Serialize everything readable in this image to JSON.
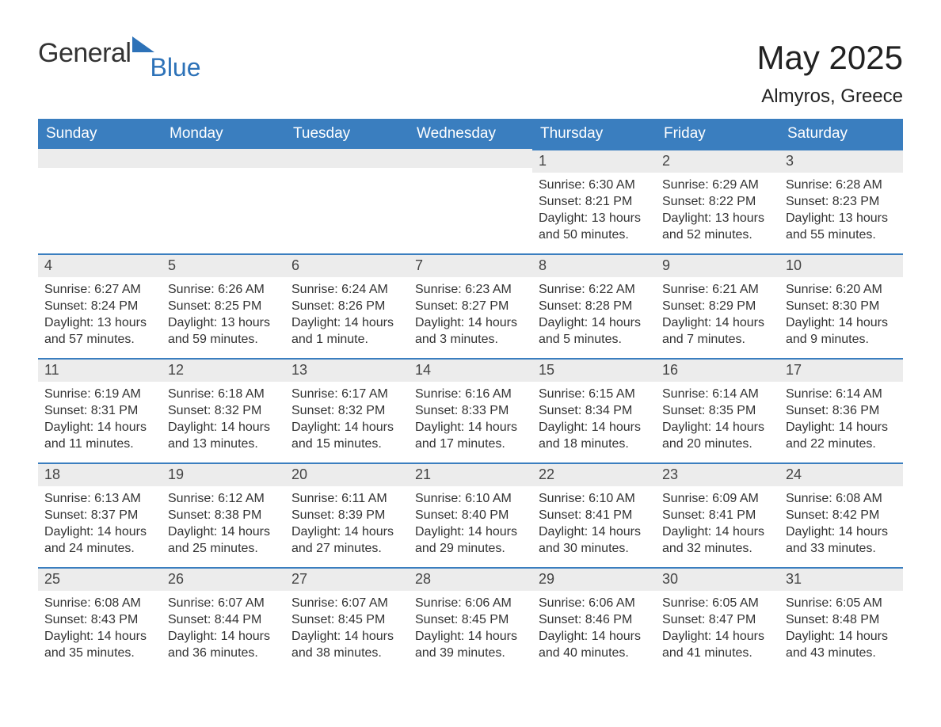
{
  "logo": {
    "general": "General",
    "blue": "Blue"
  },
  "title": "May 2025",
  "location": "Almyros, Greece",
  "colors": {
    "header_bg": "#3a7ebf",
    "header_text": "#ffffff",
    "daybar_bg": "#ececec",
    "daybar_border": "#3a7ebf",
    "body_text": "#333333",
    "logo_blue": "#2d72b8",
    "page_bg": "#ffffff"
  },
  "fonts": {
    "title_size_pt": 32,
    "location_size_pt": 18,
    "header_size_pt": 14,
    "daynum_size_pt": 13,
    "body_size_pt": 12
  },
  "weekdays": [
    "Sunday",
    "Monday",
    "Tuesday",
    "Wednesday",
    "Thursday",
    "Friday",
    "Saturday"
  ],
  "weeks": [
    [
      null,
      null,
      null,
      null,
      {
        "n": "1",
        "sr": "Sunrise: 6:30 AM",
        "ss": "Sunset: 8:21 PM",
        "d1": "Daylight: 13 hours",
        "d2": "and 50 minutes."
      },
      {
        "n": "2",
        "sr": "Sunrise: 6:29 AM",
        "ss": "Sunset: 8:22 PM",
        "d1": "Daylight: 13 hours",
        "d2": "and 52 minutes."
      },
      {
        "n": "3",
        "sr": "Sunrise: 6:28 AM",
        "ss": "Sunset: 8:23 PM",
        "d1": "Daylight: 13 hours",
        "d2": "and 55 minutes."
      }
    ],
    [
      {
        "n": "4",
        "sr": "Sunrise: 6:27 AM",
        "ss": "Sunset: 8:24 PM",
        "d1": "Daylight: 13 hours",
        "d2": "and 57 minutes."
      },
      {
        "n": "5",
        "sr": "Sunrise: 6:26 AM",
        "ss": "Sunset: 8:25 PM",
        "d1": "Daylight: 13 hours",
        "d2": "and 59 minutes."
      },
      {
        "n": "6",
        "sr": "Sunrise: 6:24 AM",
        "ss": "Sunset: 8:26 PM",
        "d1": "Daylight: 14 hours",
        "d2": "and 1 minute."
      },
      {
        "n": "7",
        "sr": "Sunrise: 6:23 AM",
        "ss": "Sunset: 8:27 PM",
        "d1": "Daylight: 14 hours",
        "d2": "and 3 minutes."
      },
      {
        "n": "8",
        "sr": "Sunrise: 6:22 AM",
        "ss": "Sunset: 8:28 PM",
        "d1": "Daylight: 14 hours",
        "d2": "and 5 minutes."
      },
      {
        "n": "9",
        "sr": "Sunrise: 6:21 AM",
        "ss": "Sunset: 8:29 PM",
        "d1": "Daylight: 14 hours",
        "d2": "and 7 minutes."
      },
      {
        "n": "10",
        "sr": "Sunrise: 6:20 AM",
        "ss": "Sunset: 8:30 PM",
        "d1": "Daylight: 14 hours",
        "d2": "and 9 minutes."
      }
    ],
    [
      {
        "n": "11",
        "sr": "Sunrise: 6:19 AM",
        "ss": "Sunset: 8:31 PM",
        "d1": "Daylight: 14 hours",
        "d2": "and 11 minutes."
      },
      {
        "n": "12",
        "sr": "Sunrise: 6:18 AM",
        "ss": "Sunset: 8:32 PM",
        "d1": "Daylight: 14 hours",
        "d2": "and 13 minutes."
      },
      {
        "n": "13",
        "sr": "Sunrise: 6:17 AM",
        "ss": "Sunset: 8:32 PM",
        "d1": "Daylight: 14 hours",
        "d2": "and 15 minutes."
      },
      {
        "n": "14",
        "sr": "Sunrise: 6:16 AM",
        "ss": "Sunset: 8:33 PM",
        "d1": "Daylight: 14 hours",
        "d2": "and 17 minutes."
      },
      {
        "n": "15",
        "sr": "Sunrise: 6:15 AM",
        "ss": "Sunset: 8:34 PM",
        "d1": "Daylight: 14 hours",
        "d2": "and 18 minutes."
      },
      {
        "n": "16",
        "sr": "Sunrise: 6:14 AM",
        "ss": "Sunset: 8:35 PM",
        "d1": "Daylight: 14 hours",
        "d2": "and 20 minutes."
      },
      {
        "n": "17",
        "sr": "Sunrise: 6:14 AM",
        "ss": "Sunset: 8:36 PM",
        "d1": "Daylight: 14 hours",
        "d2": "and 22 minutes."
      }
    ],
    [
      {
        "n": "18",
        "sr": "Sunrise: 6:13 AM",
        "ss": "Sunset: 8:37 PM",
        "d1": "Daylight: 14 hours",
        "d2": "and 24 minutes."
      },
      {
        "n": "19",
        "sr": "Sunrise: 6:12 AM",
        "ss": "Sunset: 8:38 PM",
        "d1": "Daylight: 14 hours",
        "d2": "and 25 minutes."
      },
      {
        "n": "20",
        "sr": "Sunrise: 6:11 AM",
        "ss": "Sunset: 8:39 PM",
        "d1": "Daylight: 14 hours",
        "d2": "and 27 minutes."
      },
      {
        "n": "21",
        "sr": "Sunrise: 6:10 AM",
        "ss": "Sunset: 8:40 PM",
        "d1": "Daylight: 14 hours",
        "d2": "and 29 minutes."
      },
      {
        "n": "22",
        "sr": "Sunrise: 6:10 AM",
        "ss": "Sunset: 8:41 PM",
        "d1": "Daylight: 14 hours",
        "d2": "and 30 minutes."
      },
      {
        "n": "23",
        "sr": "Sunrise: 6:09 AM",
        "ss": "Sunset: 8:41 PM",
        "d1": "Daylight: 14 hours",
        "d2": "and 32 minutes."
      },
      {
        "n": "24",
        "sr": "Sunrise: 6:08 AM",
        "ss": "Sunset: 8:42 PM",
        "d1": "Daylight: 14 hours",
        "d2": "and 33 minutes."
      }
    ],
    [
      {
        "n": "25",
        "sr": "Sunrise: 6:08 AM",
        "ss": "Sunset: 8:43 PM",
        "d1": "Daylight: 14 hours",
        "d2": "and 35 minutes."
      },
      {
        "n": "26",
        "sr": "Sunrise: 6:07 AM",
        "ss": "Sunset: 8:44 PM",
        "d1": "Daylight: 14 hours",
        "d2": "and 36 minutes."
      },
      {
        "n": "27",
        "sr": "Sunrise: 6:07 AM",
        "ss": "Sunset: 8:45 PM",
        "d1": "Daylight: 14 hours",
        "d2": "and 38 minutes."
      },
      {
        "n": "28",
        "sr": "Sunrise: 6:06 AM",
        "ss": "Sunset: 8:45 PM",
        "d1": "Daylight: 14 hours",
        "d2": "and 39 minutes."
      },
      {
        "n": "29",
        "sr": "Sunrise: 6:06 AM",
        "ss": "Sunset: 8:46 PM",
        "d1": "Daylight: 14 hours",
        "d2": "and 40 minutes."
      },
      {
        "n": "30",
        "sr": "Sunrise: 6:05 AM",
        "ss": "Sunset: 8:47 PM",
        "d1": "Daylight: 14 hours",
        "d2": "and 41 minutes."
      },
      {
        "n": "31",
        "sr": "Sunrise: 6:05 AM",
        "ss": "Sunset: 8:48 PM",
        "d1": "Daylight: 14 hours",
        "d2": "and 43 minutes."
      }
    ]
  ]
}
